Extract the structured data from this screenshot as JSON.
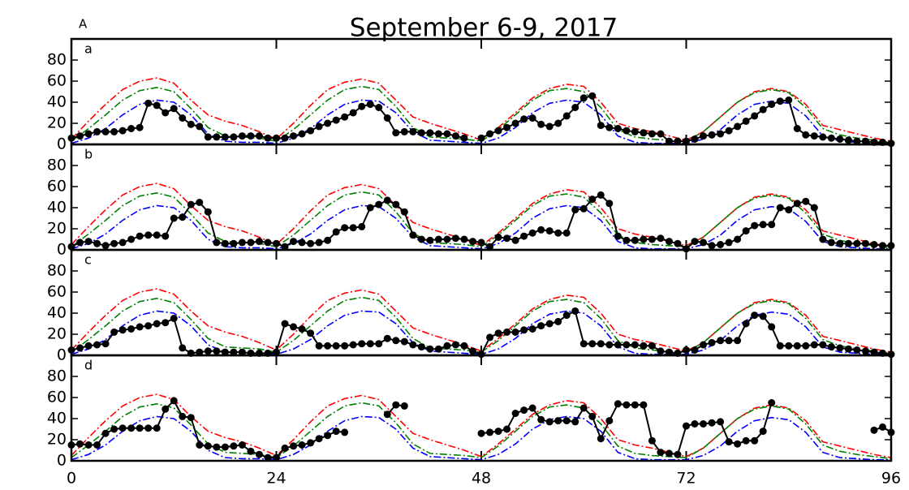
{
  "chart_data": {
    "type": "line",
    "title": "September 6-9, 2017",
    "label": "A",
    "xlim": [
      0,
      96
    ],
    "xticks": [
      0,
      24,
      48,
      72,
      96
    ],
    "ylim": [
      0,
      100
    ],
    "yticks": [
      0,
      20,
      40,
      60,
      80
    ],
    "x": [
      0,
      1,
      2,
      3,
      4,
      5,
      6,
      7,
      8,
      9,
      10,
      11,
      12,
      13,
      14,
      15,
      16,
      17,
      18,
      19,
      20,
      21,
      22,
      23,
      24,
      25,
      26,
      27,
      28,
      29,
      30,
      31,
      32,
      33,
      34,
      35,
      36,
      37,
      38,
      39,
      40,
      41,
      42,
      43,
      44,
      45,
      46,
      47,
      48,
      49,
      50,
      51,
      52,
      53,
      54,
      55,
      56,
      57,
      58,
      59,
      60,
      61,
      62,
      63,
      64,
      65,
      66,
      67,
      68,
      69,
      70,
      71,
      72,
      73,
      74,
      75,
      76,
      77,
      78,
      79,
      80,
      81,
      82,
      83,
      84,
      85,
      86,
      87,
      88,
      89,
      90,
      91,
      92,
      93,
      94,
      95,
      96
    ],
    "model_x": [
      0,
      2,
      4,
      6,
      8,
      10,
      12,
      14,
      16,
      18,
      20,
      22,
      24,
      26,
      28,
      30,
      32,
      34,
      36,
      38,
      40,
      42,
      44,
      46,
      48,
      50,
      52,
      54,
      56,
      58,
      60,
      62,
      64,
      66,
      68,
      70,
      72,
      74,
      76,
      78,
      80,
      82,
      84,
      86,
      88,
      90,
      92,
      94,
      96
    ],
    "models": [
      {
        "color": "#ff0000",
        "values": [
          5,
          22,
          38,
          52,
          60,
          63,
          58,
          42,
          28,
          22,
          18,
          12,
          5,
          20,
          37,
          52,
          59,
          62,
          58,
          42,
          26,
          20,
          15,
          10,
          4,
          16,
          30,
          44,
          53,
          57,
          55,
          40,
          20,
          15,
          12,
          8,
          4,
          12,
          26,
          40,
          50,
          53,
          50,
          38,
          18,
          14,
          10,
          6,
          3
        ]
      },
      {
        "color": "#008000",
        "values": [
          3,
          15,
          28,
          42,
          51,
          54,
          50,
          34,
          16,
          8,
          7,
          6,
          3,
          14,
          28,
          42,
          52,
          55,
          52,
          36,
          16,
          7,
          6,
          5,
          3,
          14,
          28,
          42,
          51,
          53,
          50,
          35,
          14,
          7,
          5,
          4,
          3,
          12,
          26,
          40,
          49,
          52,
          49,
          35,
          15,
          9,
          6,
          4,
          2
        ]
      },
      {
        "color": "#0000ff",
        "values": [
          1,
          6,
          15,
          28,
          38,
          42,
          40,
          28,
          10,
          3,
          2,
          2,
          1,
          6,
          15,
          28,
          38,
          42,
          41,
          30,
          12,
          4,
          3,
          2,
          1,
          6,
          16,
          30,
          39,
          42,
          40,
          28,
          8,
          2,
          1,
          1,
          1,
          5,
          14,
          28,
          38,
          41,
          39,
          27,
          8,
          3,
          2,
          1,
          1
        ]
      }
    ],
    "panels": [
      {
        "label": "a",
        "color": "#000000",
        "values": [
          6,
          8,
          10,
          12,
          12,
          12,
          13,
          15,
          16,
          39,
          37,
          30,
          34,
          25,
          19,
          17,
          7,
          7,
          7,
          7,
          8,
          8,
          8,
          6,
          6,
          6,
          8,
          10,
          13,
          17,
          20,
          23,
          26,
          30,
          36,
          38,
          35,
          25,
          11,
          12,
          12,
          11,
          11,
          10,
          10,
          8,
          6,
          null,
          6,
          10,
          13,
          16,
          20,
          24,
          25,
          19,
          17,
          20,
          27,
          35,
          44,
          46,
          18,
          16,
          15,
          13,
          12,
          11,
          10,
          10,
          3,
          3,
          3,
          5,
          8,
          9,
          10,
          13,
          17,
          22,
          27,
          33,
          38,
          41,
          42,
          15,
          9,
          8,
          7,
          6,
          5,
          4,
          3,
          3,
          2,
          2,
          1
        ]
      },
      {
        "label": "b",
        "color": "#000000",
        "values": [
          3,
          7,
          8,
          6,
          4,
          6,
          7,
          10,
          13,
          14,
          14,
          13,
          30,
          31,
          43,
          45,
          36,
          7,
          6,
          6,
          7,
          7,
          8,
          7,
          6,
          3,
          8,
          7,
          6,
          7,
          9,
          17,
          21,
          21,
          22,
          40,
          43,
          47,
          43,
          36,
          14,
          10,
          9,
          10,
          10,
          11,
          10,
          8,
          7,
          3,
          12,
          11,
          9,
          13,
          16,
          19,
          18,
          16,
          16,
          38,
          39,
          48,
          52,
          44,
          13,
          9,
          9,
          10,
          10,
          11,
          8,
          6,
          1,
          8,
          7,
          4,
          5,
          7,
          10,
          18,
          23,
          24,
          24,
          40,
          38,
          44,
          46,
          40,
          10,
          7,
          6,
          6,
          6,
          6,
          5,
          4,
          4
        ]
      },
      {
        "label": "c",
        "color": "#000000",
        "values": [
          5,
          7,
          9,
          10,
          11,
          22,
          24,
          25,
          27,
          28,
          30,
          31,
          35,
          7,
          2,
          3,
          4,
          4,
          3,
          3,
          3,
          2,
          2,
          2,
          3,
          30,
          27,
          25,
          21,
          9,
          9,
          9,
          9,
          10,
          11,
          11,
          11,
          16,
          14,
          13,
          10,
          8,
          6,
          6,
          9,
          10,
          9,
          4,
          1,
          17,
          21,
          22,
          22,
          24,
          25,
          28,
          30,
          32,
          38,
          42,
          11,
          11,
          11,
          10,
          10,
          10,
          10,
          9,
          9,
          4,
          3,
          2,
          5,
          5,
          10,
          12,
          14,
          14,
          14,
          30,
          38,
          37,
          27,
          9,
          9,
          9,
          9,
          10,
          10,
          8,
          7,
          6,
          5,
          4,
          3,
          2,
          1
        ]
      },
      {
        "label": "d",
        "color": "#000000",
        "values": [
          15,
          16,
          15,
          15,
          26,
          30,
          31,
          31,
          31,
          31,
          31,
          49,
          57,
          42,
          41,
          15,
          14,
          13,
          13,
          14,
          15,
          9,
          6,
          3,
          3,
          12,
          14,
          15,
          17,
          21,
          24,
          28,
          27,
          null,
          null,
          null,
          null,
          44,
          53,
          52,
          null,
          null,
          null,
          null,
          null,
          null,
          null,
          null,
          26,
          27,
          28,
          30,
          45,
          48,
          50,
          39,
          37,
          38,
          38,
          37,
          50,
          42,
          21,
          38,
          54,
          53,
          53,
          53,
          19,
          8,
          7,
          6,
          33,
          35,
          35,
          36,
          37,
          18,
          16,
          19,
          19,
          28,
          55,
          null,
          null,
          null,
          null,
          null,
          null,
          null,
          null,
          null,
          null,
          null,
          29,
          32,
          27
        ]
      }
    ]
  }
}
